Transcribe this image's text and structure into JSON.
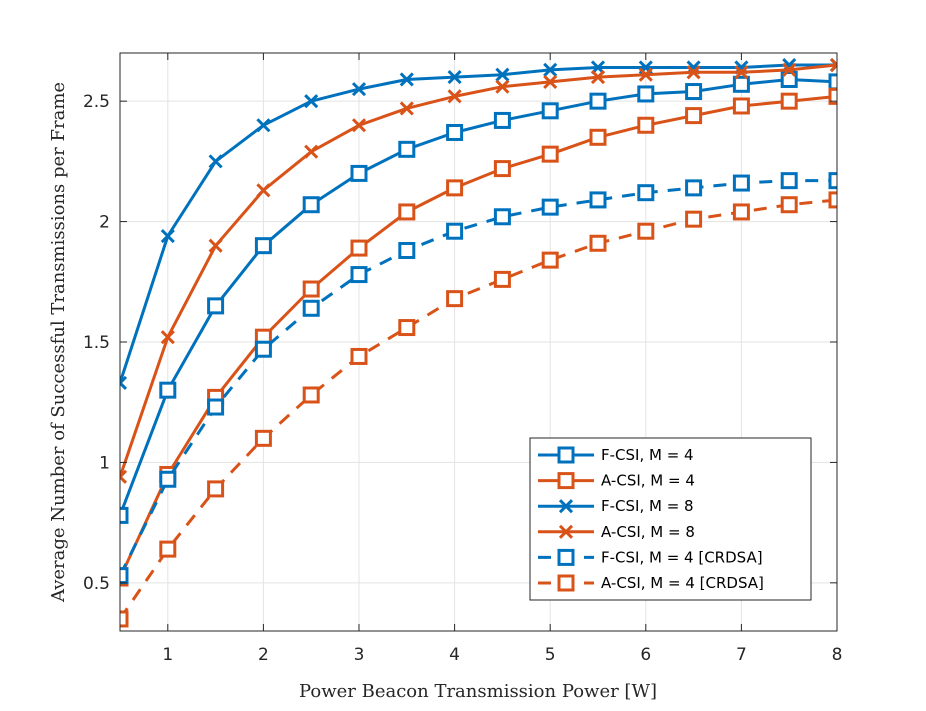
{
  "chart_data": {
    "type": "line",
    "title": "",
    "xlabel": "Power Beacon Transmission Power [W]",
    "ylabel": "Average Number of Successful Transmissions per Frame",
    "xlim": [
      0.5,
      8
    ],
    "ylim": [
      0.3,
      2.7
    ],
    "x_ticks": [
      1,
      2,
      3,
      4,
      5,
      6,
      7,
      8
    ],
    "x_tick_labels": [
      "1",
      "2",
      "3",
      "4",
      "5",
      "6",
      "7",
      "8"
    ],
    "y_ticks": [
      0.5,
      1,
      1.5,
      2,
      2.5
    ],
    "y_tick_labels": [
      "0.5",
      "1",
      "1.5",
      "2",
      "2.5"
    ],
    "grid": true,
    "legend_position": "bottom-right",
    "x": [
      0.5,
      1,
      1.5,
      2,
      2.5,
      3,
      3.5,
      4,
      4.5,
      5,
      5.5,
      6,
      6.5,
      7,
      7.5,
      8
    ],
    "series": [
      {
        "name": "F-CSI, M = 4",
        "color": "#0072BD",
        "line_style": "solid",
        "marker": "square",
        "values": [
          0.78,
          1.3,
          1.65,
          1.9,
          2.07,
          2.2,
          2.3,
          2.37,
          2.42,
          2.46,
          2.5,
          2.53,
          2.54,
          2.57,
          2.59,
          2.58
        ]
      },
      {
        "name": "A-CSI, M = 4",
        "color": "#D95319",
        "line_style": "solid",
        "marker": "square",
        "values": [
          0.52,
          0.95,
          1.27,
          1.52,
          1.72,
          1.89,
          2.04,
          2.14,
          2.22,
          2.28,
          2.35,
          2.4,
          2.44,
          2.48,
          2.5,
          2.52
        ]
      },
      {
        "name": "F-CSI, M = 8",
        "color": "#0072BD",
        "line_style": "solid",
        "marker": "x",
        "values": [
          1.33,
          1.94,
          2.25,
          2.4,
          2.5,
          2.55,
          2.59,
          2.6,
          2.61,
          2.63,
          2.64,
          2.64,
          2.64,
          2.64,
          2.65,
          2.65
        ]
      },
      {
        "name": "A-CSI, M = 8",
        "color": "#D95319",
        "line_style": "solid",
        "marker": "x",
        "values": [
          0.94,
          1.52,
          1.9,
          2.13,
          2.29,
          2.4,
          2.47,
          2.52,
          2.56,
          2.58,
          2.6,
          2.61,
          2.62,
          2.62,
          2.63,
          2.65
        ]
      },
      {
        "name": "F-CSI, M = 4 [CRDSA]",
        "color": "#0072BD",
        "line_style": "dashed",
        "marker": "square",
        "values": [
          0.53,
          0.93,
          1.23,
          1.47,
          1.64,
          1.78,
          1.88,
          1.96,
          2.02,
          2.06,
          2.09,
          2.12,
          2.14,
          2.16,
          2.17,
          2.17
        ]
      },
      {
        "name": "A-CSI, M = 4 [CRDSA]",
        "color": "#D95319",
        "line_style": "dashed",
        "marker": "square",
        "values": [
          0.35,
          0.64,
          0.89,
          1.1,
          1.28,
          1.44,
          1.56,
          1.68,
          1.76,
          1.84,
          1.91,
          1.96,
          2.01,
          2.04,
          2.07,
          2.09
        ]
      }
    ]
  }
}
